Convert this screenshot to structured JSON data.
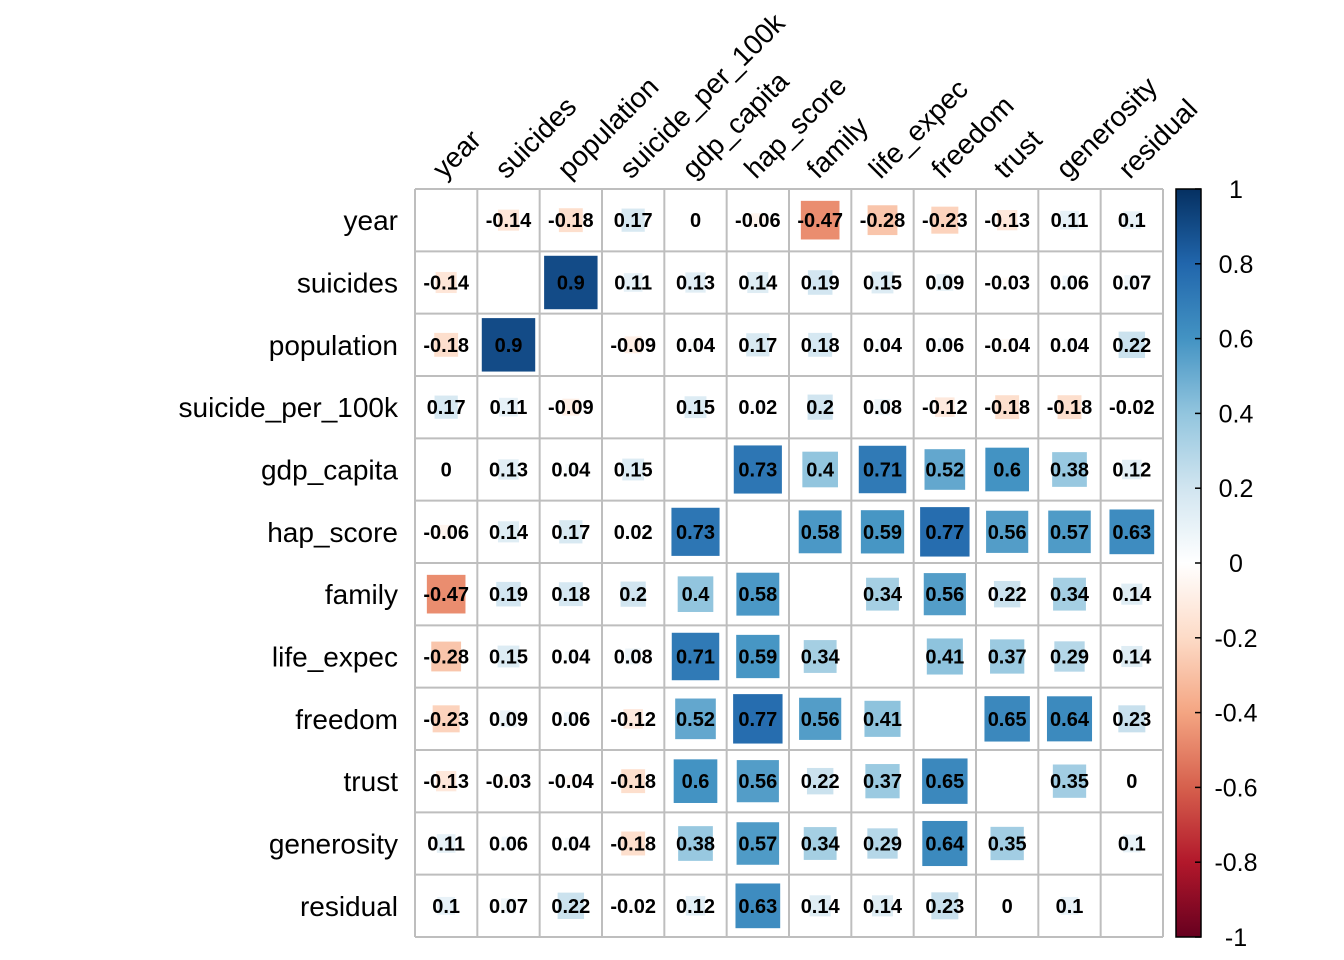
{
  "chart_data": {
    "type": "heatmap",
    "variables": [
      "year",
      "suicides",
      "population",
      "suicide_per_100k",
      "gdp_capita",
      "hap_score",
      "family",
      "life_expec",
      "freedom",
      "trust",
      "generosity",
      "residual"
    ],
    "matrix": [
      [
        null,
        -0.14,
        -0.18,
        0.17,
        0,
        -0.06,
        -0.47,
        -0.28,
        -0.23,
        -0.13,
        0.11,
        0.1
      ],
      [
        -0.14,
        null,
        0.9,
        0.11,
        0.13,
        0.14,
        0.19,
        0.15,
        0.09,
        -0.03,
        0.06,
        0.07
      ],
      [
        -0.18,
        0.9,
        null,
        -0.09,
        0.04,
        0.17,
        0.18,
        0.04,
        0.06,
        -0.04,
        0.04,
        0.22
      ],
      [
        0.17,
        0.11,
        -0.09,
        null,
        0.15,
        0.02,
        0.2,
        0.08,
        -0.12,
        -0.18,
        -0.18,
        -0.02
      ],
      [
        0,
        0.13,
        0.04,
        0.15,
        null,
        0.73,
        0.4,
        0.71,
        0.52,
        0.6,
        0.38,
        0.12
      ],
      [
        -0.06,
        0.14,
        0.17,
        0.02,
        0.73,
        null,
        0.58,
        0.59,
        0.77,
        0.56,
        0.57,
        0.63
      ],
      [
        -0.47,
        0.19,
        0.18,
        0.2,
        0.4,
        0.58,
        null,
        0.34,
        0.56,
        0.22,
        0.34,
        0.14
      ],
      [
        -0.28,
        0.15,
        0.04,
        0.08,
        0.71,
        0.59,
        0.34,
        null,
        0.41,
        0.37,
        0.29,
        0.14
      ],
      [
        -0.23,
        0.09,
        0.06,
        -0.12,
        0.52,
        0.77,
        0.56,
        0.41,
        null,
        0.65,
        0.64,
        0.23
      ],
      [
        -0.13,
        -0.03,
        -0.04,
        -0.18,
        0.6,
        0.56,
        0.22,
        0.37,
        0.65,
        null,
        0.35,
        0
      ],
      [
        0.11,
        0.06,
        0.04,
        -0.18,
        0.38,
        0.57,
        0.34,
        0.29,
        0.64,
        0.35,
        null,
        0.1
      ],
      [
        0.1,
        0.07,
        0.22,
        -0.02,
        0.12,
        0.63,
        0.14,
        0.14,
        0.23,
        0,
        0.1,
        null
      ]
    ],
    "colorbar": {
      "ticks": [
        "1",
        "0.8",
        "0.6",
        "0.4",
        "0.2",
        "0",
        "-0.2",
        "-0.4",
        "-0.6",
        "-0.8",
        "-1"
      ],
      "range": [
        -1,
        1
      ]
    },
    "palette": [
      "#67001F",
      "#B2182B",
      "#D6604D",
      "#F4A582",
      "#FDDBC7",
      "#FFFFFF",
      "#D1E5F0",
      "#92C5DE",
      "#4393C3",
      "#2166AC",
      "#053061"
    ],
    "grid_color": "#BEBEBE"
  }
}
